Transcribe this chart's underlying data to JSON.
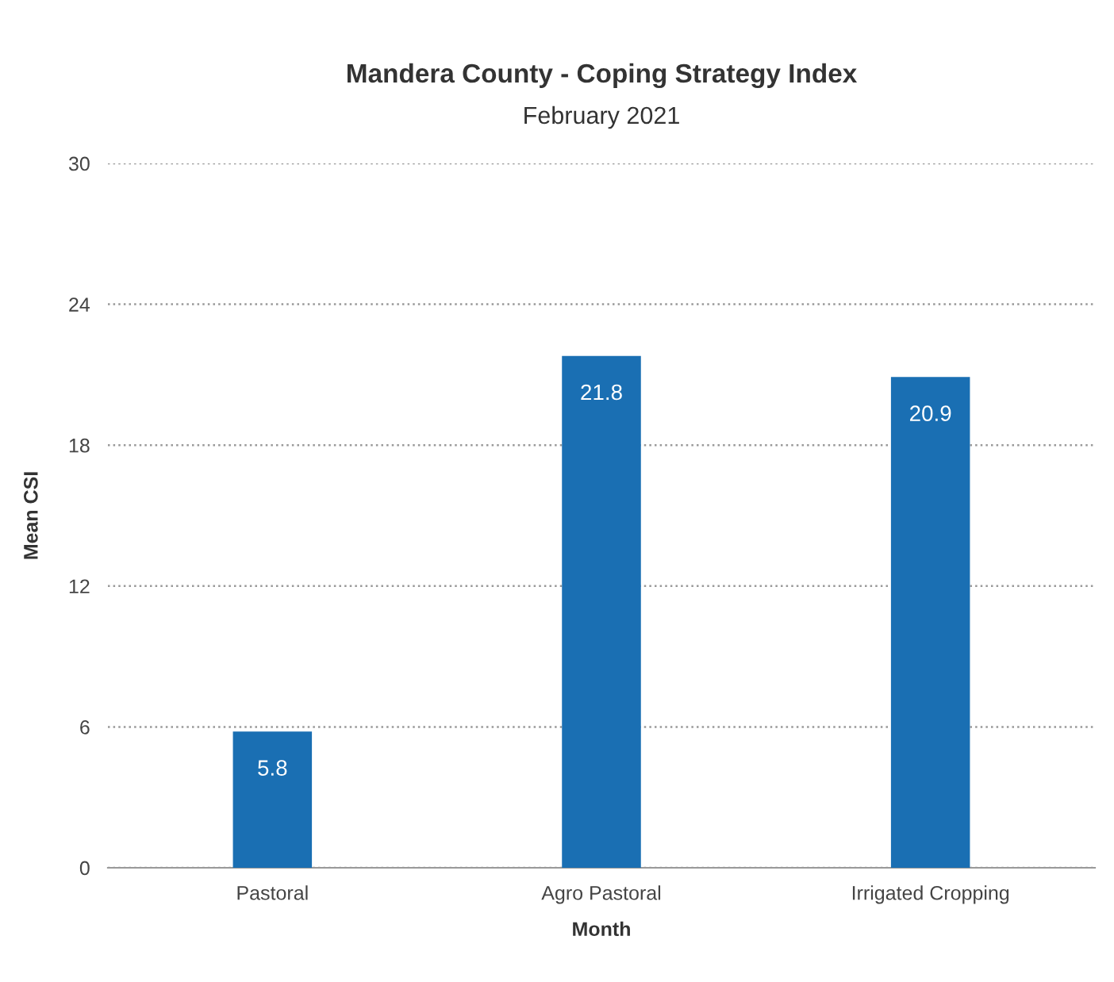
{
  "chart_data": {
    "type": "bar",
    "title": "Mandera County - Coping Strategy Index",
    "subtitle": "February 2021",
    "xlabel": "Month",
    "ylabel": "Mean CSI",
    "categories": [
      "Pastoral",
      "Agro Pastoral",
      "Irrigated Cropping"
    ],
    "values": [
      5.8,
      21.8,
      20.9
    ],
    "color": "#1a6fb3",
    "ylim": [
      0,
      30
    ],
    "yticks": [
      0,
      6,
      12,
      18,
      24,
      30
    ],
    "grid": "y",
    "data_labels": true
  }
}
